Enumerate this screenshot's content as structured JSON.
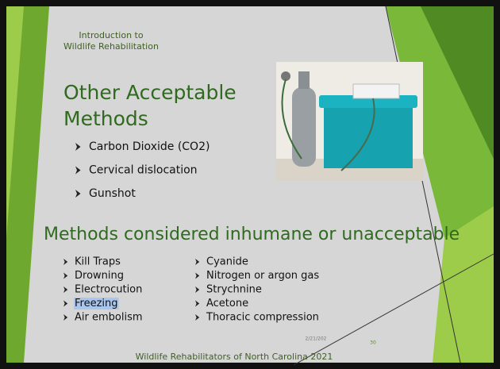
{
  "header": {
    "lines": [
      "Introduction to",
      "Wildlife Rehabilitation"
    ]
  },
  "title": {
    "lines": [
      "Other Acceptable",
      "Methods"
    ]
  },
  "acceptable": [
    "Carbon Dioxide (CO2)",
    "Cervical dislocation",
    "Gunshot"
  ],
  "subheading": "Methods considered inhumane or unacceptable",
  "unacceptable_left": [
    "Kill Traps",
    "Drowning",
    "Electrocution",
    "Freezing",
    "Air embolism"
  ],
  "unacceptable_right": [
    "Cyanide",
    "Nitrogen or argon gas",
    "Strychnine",
    "Acetone",
    "Thoracic compression"
  ],
  "footer": "Wildlife Rehabilitators of North Carolina 2021",
  "date": "2/21/202",
  "page_number": "30"
}
